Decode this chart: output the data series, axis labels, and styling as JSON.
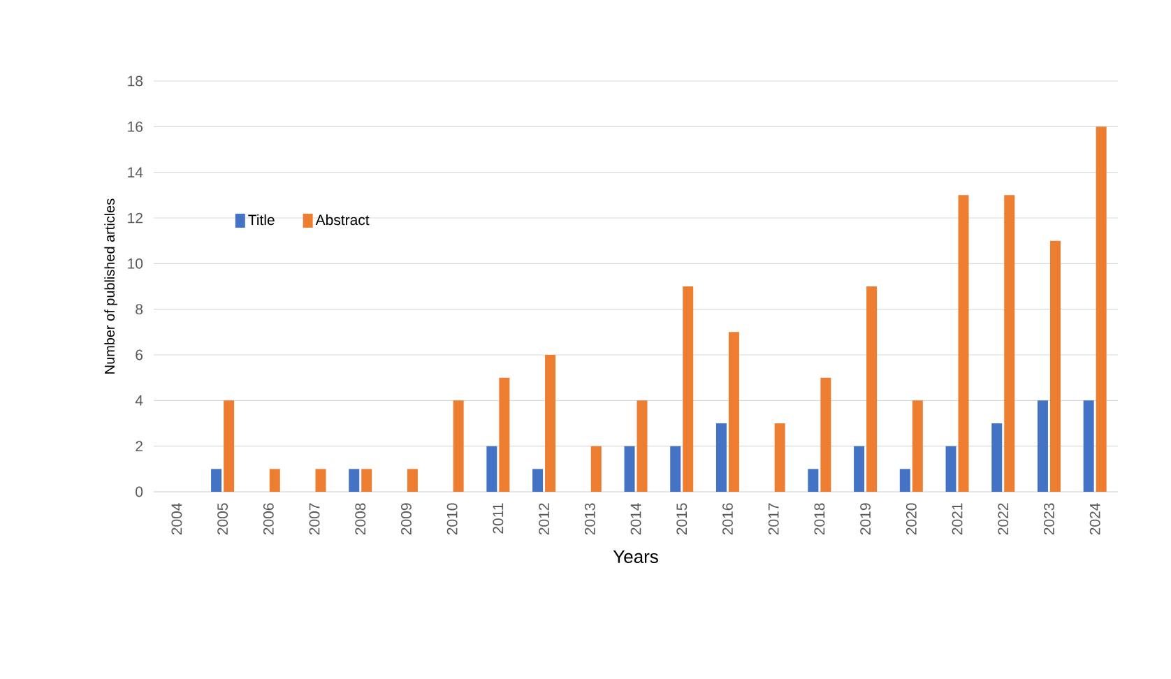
{
  "chart_data": {
    "type": "bar",
    "xlabel": "Years",
    "ylabel": "Number of published articles",
    "categories": [
      "2004",
      "2005",
      "2006",
      "2007",
      "2008",
      "2009",
      "2010",
      "2011",
      "2012",
      "2013",
      "2014",
      "2015",
      "2016",
      "2017",
      "2018",
      "2019",
      "2020",
      "2021",
      "2022",
      "2023",
      "2024"
    ],
    "series": [
      {
        "name": "Title",
        "color": "#4472c4",
        "values": [
          0,
          1,
          0,
          0,
          1,
          0,
          0,
          2,
          1,
          0,
          2,
          2,
          3,
          0,
          1,
          2,
          1,
          2,
          3,
          4,
          4
        ]
      },
      {
        "name": "Abstract",
        "color": "#ed7d31",
        "values": [
          0,
          4,
          1,
          1,
          1,
          1,
          4,
          5,
          6,
          2,
          4,
          9,
          7,
          3,
          5,
          9,
          4,
          13,
          13,
          11,
          16
        ]
      }
    ],
    "ylim": [
      0,
      18
    ],
    "yticks": [
      0,
      2,
      4,
      6,
      8,
      10,
      12,
      14,
      16,
      18
    ],
    "grid": "y",
    "legend": "top left"
  }
}
